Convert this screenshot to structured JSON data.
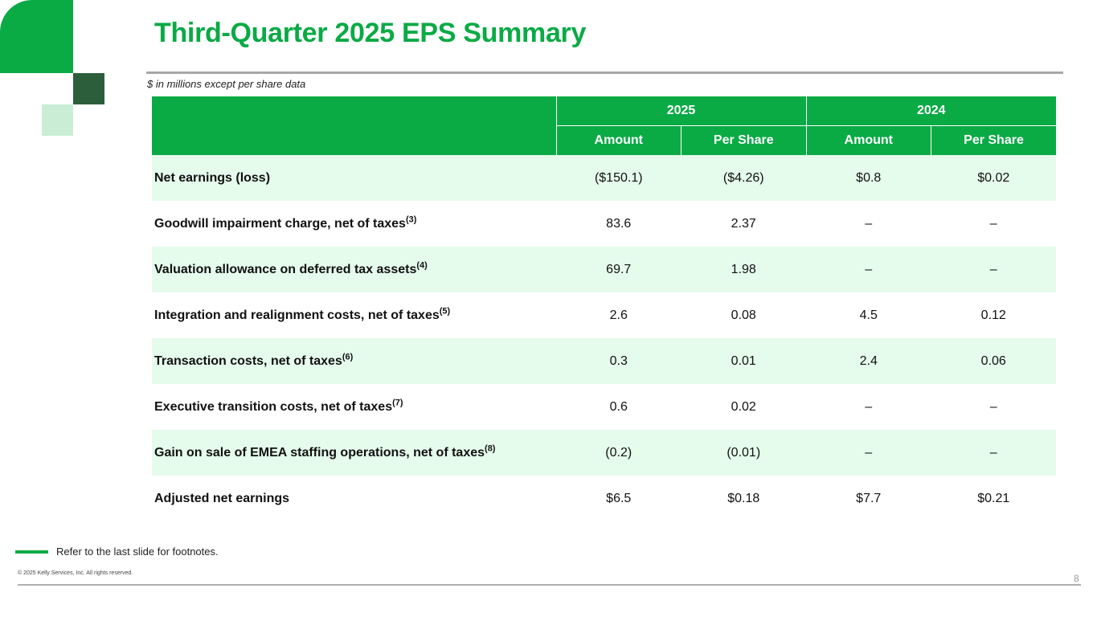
{
  "slide": {
    "title": "Third-Quarter 2025 EPS Summary",
    "units_note": "$ in millions except per share data",
    "footnote_ref": "Refer to the last slide for footnotes.",
    "copyright": "© 2025 Kelly Services, Inc. All rights reserved.",
    "page_number": "8"
  },
  "table": {
    "years": [
      "2025",
      "2024"
    ],
    "subheaders": [
      "Amount",
      "Per Share",
      "Amount",
      "Per Share"
    ],
    "rows": [
      {
        "label": "Net earnings (loss)",
        "note": "",
        "values": [
          "($150.1)",
          "($4.26)",
          "$0.8",
          "$0.02"
        ]
      },
      {
        "label": "Goodwill impairment charge, net of taxes",
        "note": "(3)",
        "values": [
          "83.6",
          "2.37",
          "–",
          "–"
        ]
      },
      {
        "label": "Valuation allowance on deferred tax assets",
        "note": "(4)",
        "values": [
          "69.7",
          "1.98",
          "–",
          "–"
        ]
      },
      {
        "label": "Integration and realignment costs, net of taxes",
        "note": "(5)",
        "values": [
          "2.6",
          "0.08",
          "4.5",
          "0.12"
        ]
      },
      {
        "label": "Transaction costs, net of taxes",
        "note": "(6)",
        "values": [
          "0.3",
          "0.01",
          "2.4",
          "0.06"
        ]
      },
      {
        "label": "Executive transition costs, net of taxes",
        "note": "(7)",
        "values": [
          "0.6",
          "0.02",
          "–",
          "–"
        ]
      },
      {
        "label": "Gain on sale of EMEA staffing operations, net of taxes",
        "note": "(8)",
        "values": [
          "(0.2)",
          "(0.01)",
          "–",
          "–"
        ]
      },
      {
        "label": "Adjusted net earnings",
        "note": "",
        "values": [
          "$6.5",
          "$0.18",
          "$7.7",
          "$0.21"
        ]
      }
    ]
  },
  "colors": {
    "brand_green": "#0aaa45",
    "dark_green": "#2c5e3b",
    "light_green": "#c9eed5",
    "row_shade": "#e5fbec"
  }
}
